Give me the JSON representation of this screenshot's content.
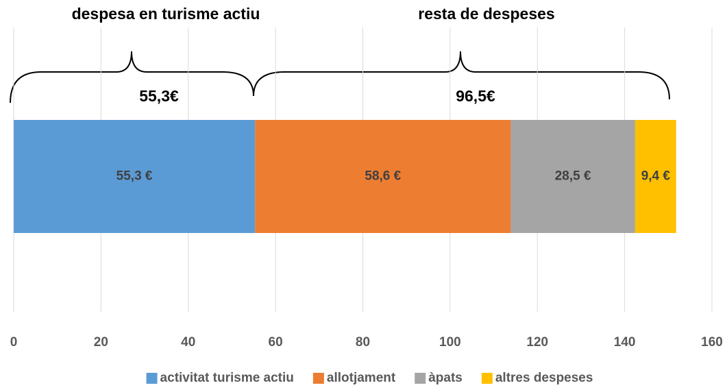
{
  "chart_data": {
    "type": "stacked_bar",
    "orientation": "horizontal",
    "categories": [
      null
    ],
    "series": [
      {
        "name": "activitat turisme actiu",
        "color": "#5b9bd5",
        "values": [
          55.3
        ],
        "value_labels": [
          "55,3 €"
        ]
      },
      {
        "name": "allotjament",
        "color": "#ed7d31",
        "values": [
          58.6
        ],
        "value_labels": [
          "58,6 €"
        ]
      },
      {
        "name": "àpats",
        "color": "#a5a5a5",
        "values": [
          28.5
        ],
        "value_labels": [
          "28,5 €"
        ]
      },
      {
        "name": "altres despeses",
        "color": "#ffc000",
        "values": [
          9.4
        ],
        "value_labels": [
          "9,4 €"
        ]
      }
    ],
    "xlim": [
      0,
      160
    ],
    "xticks": [
      0,
      20,
      40,
      60,
      80,
      100,
      120,
      140,
      160
    ],
    "grid": true,
    "legend": "bottom",
    "annotations": [
      "despesa en turisme actiu",
      "resta de despeses",
      "55,3€",
      "96,5€"
    ]
  }
}
